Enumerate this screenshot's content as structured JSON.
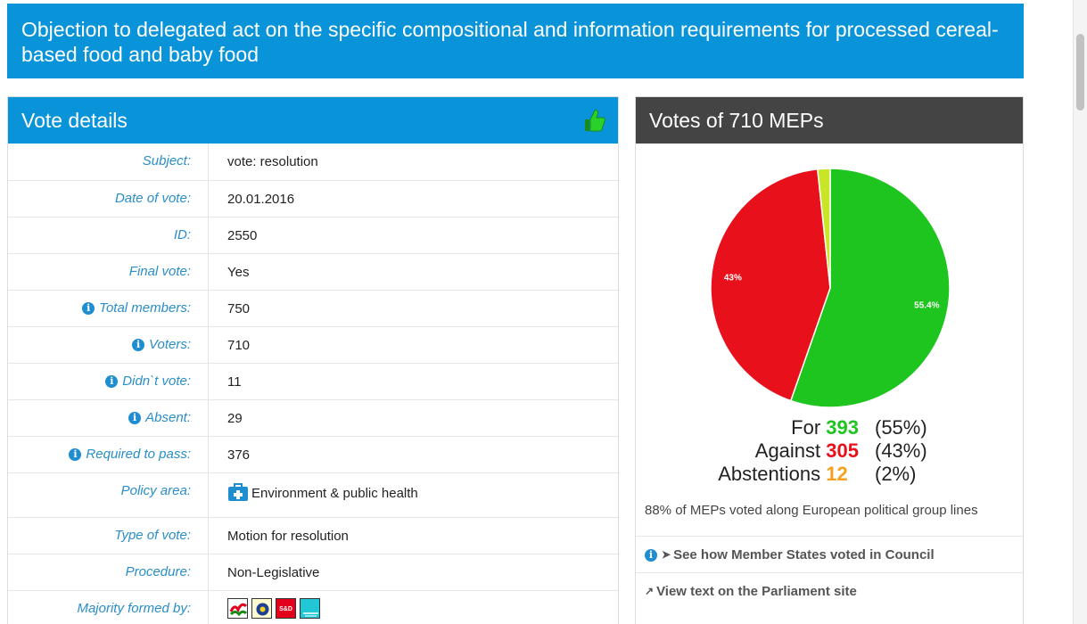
{
  "page": {
    "title": "Objection to delegated act on the specific compositional and information requirements for processed cereal-based food and baby food"
  },
  "details": {
    "header": "Vote details",
    "rows": [
      {
        "label": "Subject:",
        "value": "vote: resolution"
      },
      {
        "label": "Date of vote:",
        "value": "20.01.2016"
      },
      {
        "label": "ID:",
        "value": "2550"
      },
      {
        "label": "Final vote:",
        "value": "Yes"
      },
      {
        "label": "Total members:",
        "value": "750"
      },
      {
        "label": "Voters:",
        "value": "710"
      },
      {
        "label": "Didn`t vote:",
        "value": "11"
      },
      {
        "label": "Absent:",
        "value": "29"
      },
      {
        "label": "Required to pass:",
        "value": "376"
      },
      {
        "label": "Policy area:",
        "value": "Environment & public health"
      },
      {
        "label": "Type of vote:",
        "value": "Motion for resolution"
      },
      {
        "label": "Procedure:",
        "value": "Non-Legislative"
      },
      {
        "label": "Majority formed by:",
        "value": ""
      }
    ],
    "info_icon_glyph": "i",
    "majority_badges": [
      {
        "icon": "epp-group-icon"
      },
      {
        "icon": "alde-group-icon"
      },
      {
        "icon": "sd-group-icon",
        "text": "S&D"
      },
      {
        "icon": "greens-efa-group-icon"
      }
    ]
  },
  "votes": {
    "header": "Votes of 710 MEPs",
    "for_label": "For",
    "for_count": "393",
    "for_pct": "(55%)",
    "against_label": "Against",
    "against_count": "305",
    "against_pct": "(43%)",
    "abst_label": "Abstentions",
    "abst_count": "12",
    "abst_pct": "(2%)",
    "group_lines": "88% of MEPs voted along European political group lines",
    "council_link": "See how Member States voted in Council",
    "parliament_link": "View text on the Parliament site"
  },
  "colors": {
    "for": "#1ec51e",
    "against": "#e8101a",
    "abstain": "#c8e627",
    "header_blue": "#0994d9",
    "header_dark": "#444444"
  },
  "chart_data": {
    "type": "pie",
    "categories": [
      "For",
      "Against",
      "Abstentions"
    ],
    "values": [
      393,
      305,
      12
    ],
    "slice_labels": [
      "55.4%",
      "43%",
      ""
    ]
  }
}
